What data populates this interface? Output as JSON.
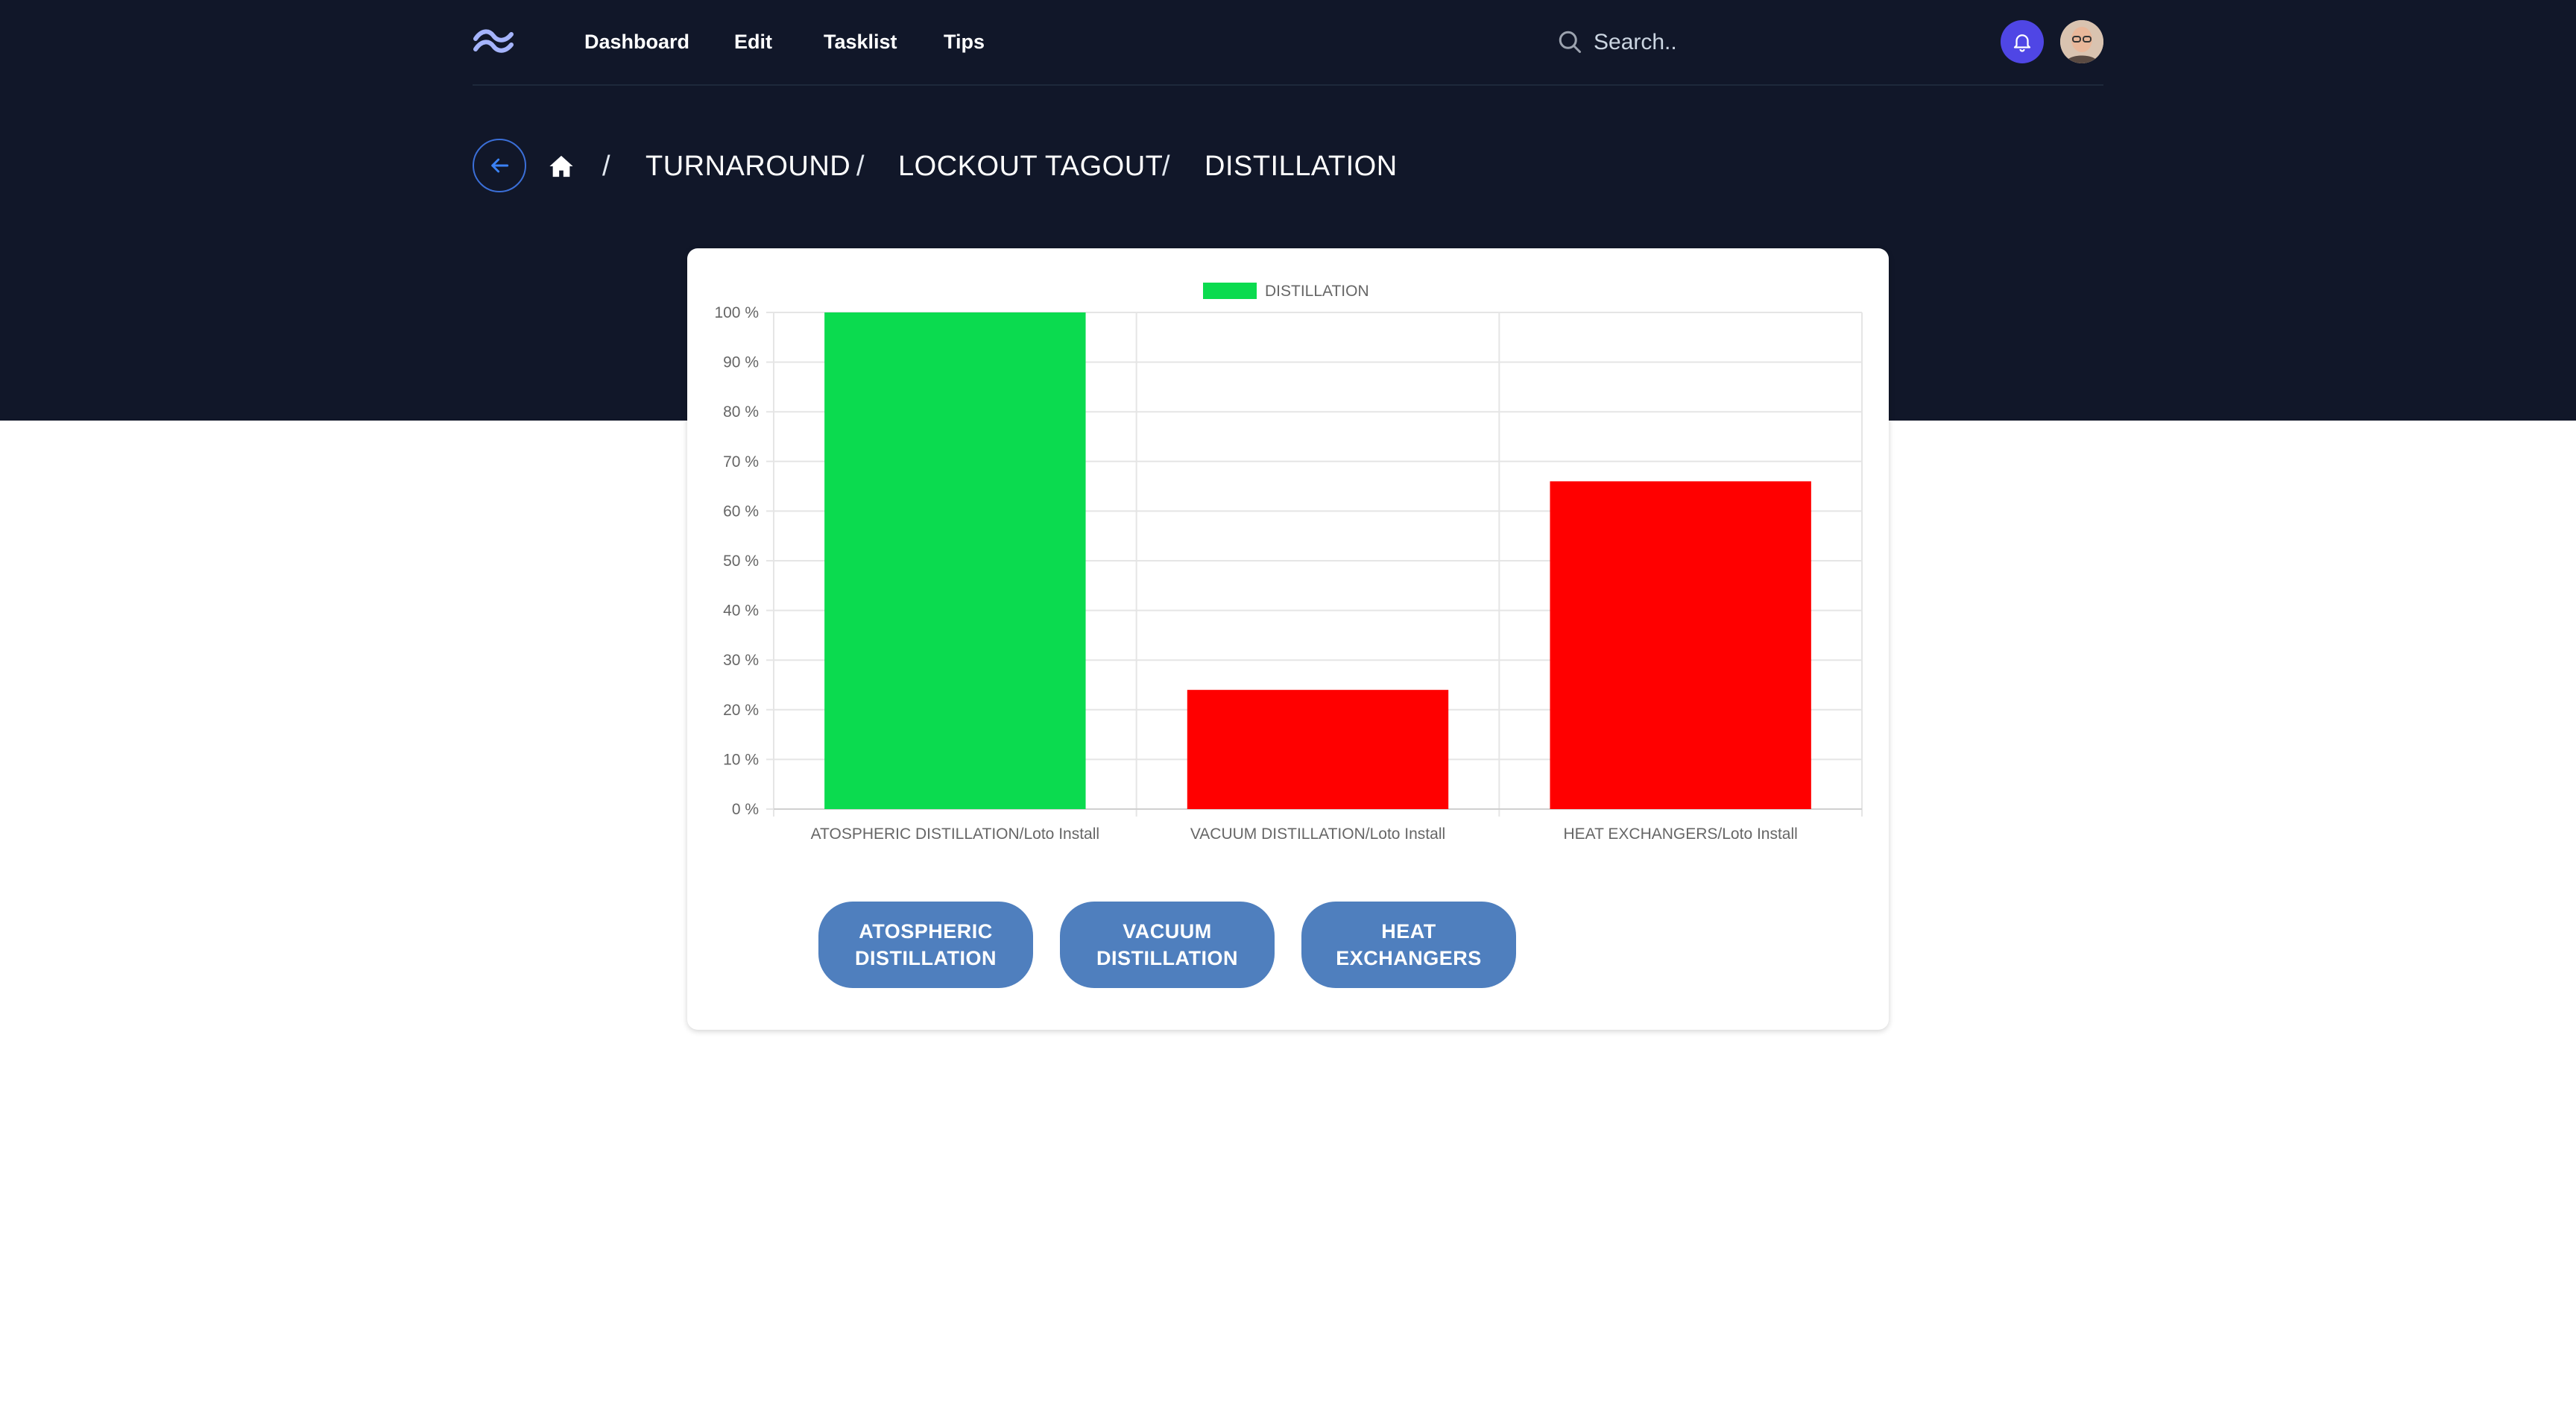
{
  "nav": {
    "links": [
      "Dashboard",
      "Edit",
      "Tasklist",
      "Tips"
    ],
    "search_placeholder": "Search.."
  },
  "breadcrumb": [
    "TURNAROUND",
    "LOCKOUT TAGOUT",
    "DISTILLATION"
  ],
  "chart_data": {
    "type": "bar",
    "legend": "DISTILLATION",
    "legend_color": "#0bdb4f",
    "categories": [
      "ATOSPHERIC DISTILLATION/Loto Install",
      "VACUUM DISTILLATION/Loto Install",
      "HEAT EXCHANGERS/Loto Install"
    ],
    "series": [
      {
        "name": "DISTILLATION",
        "values": [
          100,
          24,
          66
        ]
      }
    ],
    "colors": [
      "#0bdb4f",
      "#ff0000",
      "#ff0000"
    ],
    "ylim": [
      0,
      100
    ],
    "yticks": [
      "0 %",
      "10 %",
      "20 %",
      "30 %",
      "40 %",
      "50 %",
      "60 %",
      "70 %",
      "80 %",
      "90 %",
      "100 %"
    ],
    "grid": true,
    "legend_position": "top"
  },
  "buttons": [
    [
      "ATOSPHERIC",
      "DISTILLATION"
    ],
    [
      "VACUUM",
      "DISTILLATION"
    ],
    [
      "HEAT",
      "EXCHANGERS"
    ]
  ]
}
